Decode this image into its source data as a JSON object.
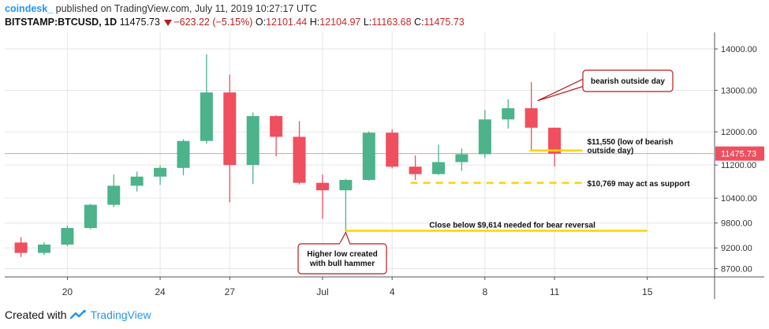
{
  "header": {
    "line1_user": "coindesk_",
    "line1_rest": " published on TradingView.com, July 11, 2019 10:27:17 UTC",
    "symbol": "BITSTAMP:BTCUSD, 1D",
    "last": "11475.73",
    "change": "−623.22 (−5.15%)",
    "o_label": "O:",
    "o_val": "12101.44",
    "h_label": "H:",
    "h_val": "12104.97",
    "l_label": "L:",
    "l_val": "11163.68",
    "c_label": "C:",
    "c_val": "11475.73"
  },
  "footer": {
    "created_with": "Created with",
    "brand": "TradingView",
    "logo": "tradingview-logo-icon"
  },
  "colors": {
    "up": "#4cb38b",
    "down": "#ef4f5e",
    "background": "#ffffff",
    "grid": "#e6e6e6",
    "annotation_line": "#ffd400",
    "price_line": "#e89aa1",
    "price_label_bg": "#ef4f5e"
  },
  "chart_data": {
    "type": "candlestick",
    "title": "",
    "y_axis_side": "right",
    "ylim": [
      8500,
      14400
    ],
    "y_ticks": [
      8700,
      9200,
      9800,
      10400,
      11200,
      12000,
      13000,
      14000
    ],
    "y_tick_labels": [
      "8700.00",
      "9200.00",
      "9800.00",
      "10400.00",
      "11200.00",
      "12000.00",
      "13000.00",
      "14000.00"
    ],
    "x_ticks": [
      {
        "index": 2,
        "label": "20"
      },
      {
        "index": 6,
        "label": "24"
      },
      {
        "index": 9,
        "label": "27"
      },
      {
        "index": 13,
        "label": "Jul"
      },
      {
        "index": 16,
        "label": "4"
      },
      {
        "index": 20,
        "label": "8"
      },
      {
        "index": 23,
        "label": "11"
      },
      {
        "index": 27,
        "label": "15"
      }
    ],
    "x_range": [
      -0.7,
      29.9
    ],
    "current_price": 11475.73,
    "current_price_label": "11475.73",
    "candles": [
      {
        "o": 9330,
        "h": 9460,
        "l": 8980,
        "c": 9080
      },
      {
        "o": 9080,
        "h": 9340,
        "l": 9030,
        "c": 9280
      },
      {
        "o": 9280,
        "h": 9740,
        "l": 9240,
        "c": 9680
      },
      {
        "o": 9680,
        "h": 10260,
        "l": 9650,
        "c": 10240
      },
      {
        "o": 10240,
        "h": 10970,
        "l": 10180,
        "c": 10700
      },
      {
        "o": 10700,
        "h": 11040,
        "l": 10560,
        "c": 10920
      },
      {
        "o": 10920,
        "h": 11190,
        "l": 10720,
        "c": 11130
      },
      {
        "o": 11130,
        "h": 11820,
        "l": 10950,
        "c": 11780
      },
      {
        "o": 11780,
        "h": 13870,
        "l": 11720,
        "c": 12950
      },
      {
        "o": 12950,
        "h": 13380,
        "l": 10300,
        "c": 11200
      },
      {
        "o": 11200,
        "h": 12470,
        "l": 10740,
        "c": 12380
      },
      {
        "o": 12380,
        "h": 12400,
        "l": 11410,
        "c": 11880
      },
      {
        "o": 11880,
        "h": 12260,
        "l": 10730,
        "c": 10770
      },
      {
        "o": 10770,
        "h": 10970,
        "l": 9900,
        "c": 10590
      },
      {
        "o": 10590,
        "h": 10860,
        "l": 9614,
        "c": 10840
      },
      {
        "o": 10840,
        "h": 12010,
        "l": 10820,
        "c": 11980
      },
      {
        "o": 11980,
        "h": 12060,
        "l": 11120,
        "c": 11160
      },
      {
        "o": 11160,
        "h": 11430,
        "l": 10840,
        "c": 10980
      },
      {
        "o": 10980,
        "h": 11690,
        "l": 10960,
        "c": 11270
      },
      {
        "o": 11270,
        "h": 11600,
        "l": 11060,
        "c": 11460
      },
      {
        "o": 11460,
        "h": 12530,
        "l": 11370,
        "c": 12300
      },
      {
        "o": 12300,
        "h": 12780,
        "l": 12080,
        "c": 12570
      },
      {
        "o": 12570,
        "h": 13200,
        "l": 11550,
        "c": 12100
      },
      {
        "o": 12100,
        "h": 12105,
        "l": 11164,
        "c": 11476
      }
    ],
    "annotations": [
      {
        "name": "bearish-outside-day-callout",
        "text": "bearish outside day"
      },
      {
        "name": "low-of-bearish-outside-day-label",
        "text": "$11,550 (low of bearish outside day)",
        "level": 11550
      },
      {
        "name": "support-label",
        "text": "$10,769 may act as support",
        "level": 10769
      },
      {
        "name": "bear-reversal-label",
        "text": "Close below $9,614 needed for bear reversal",
        "level": 9614
      },
      {
        "name": "higher-low-callout",
        "text": "Higher low created with bull hammer"
      }
    ]
  }
}
